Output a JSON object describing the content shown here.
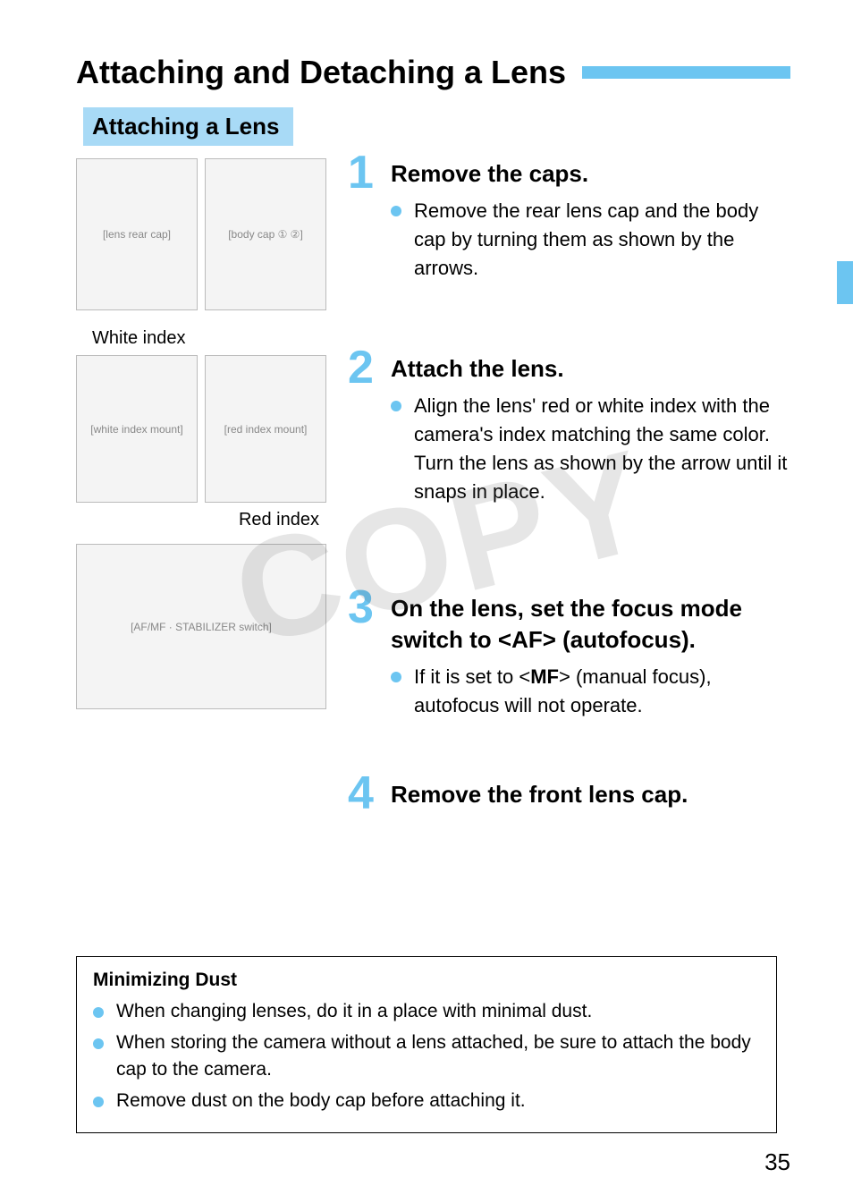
{
  "colors": {
    "accent": "#6cc5f1",
    "subhead_bg": "#a8daf6",
    "bullet": "#6cc5f1",
    "title_bar": "#6cc5f1",
    "tab": "#6cc5f1"
  },
  "title": "Attaching and Detaching a Lens",
  "subhead": "Attaching a Lens",
  "watermark": "COPY",
  "callouts": {
    "white_index": "White index",
    "red_index": "Red index"
  },
  "illus_placeholders": {
    "caps_lens": "[lens rear cap]",
    "caps_body": "[body cap ① ②]",
    "white_idx": "[white index mount]",
    "red_idx": "[red index mount]",
    "af_switch": "[AF/MF · STABILIZER switch]"
  },
  "steps": [
    {
      "num": "1",
      "head": "Remove the caps.",
      "bullets": [
        "Remove the rear lens cap and the body cap by turning them as shown by the arrows."
      ]
    },
    {
      "num": "2",
      "head": "Attach the lens.",
      "bullets": [
        "Align the lens' red or white index with the camera's index matching the same color. Turn the lens as shown by the arrow until it snaps in place."
      ]
    },
    {
      "num": "3",
      "head": "On the lens, set the focus mode switch to <AF> (autofocus).",
      "bullets": [
        "If it is set to <__MF__> (manual focus), autofocus will not operate."
      ]
    },
    {
      "num": "4",
      "head": "Remove the front lens cap.",
      "bullets": []
    }
  ],
  "infobox": {
    "title": "Minimizing Dust",
    "bullets": [
      "When changing lenses, do it in a place with minimal dust.",
      "When storing the camera without a lens attached, be sure to attach the body cap to the camera.",
      "Remove dust on the body cap before attaching it."
    ]
  },
  "page_number": "35"
}
